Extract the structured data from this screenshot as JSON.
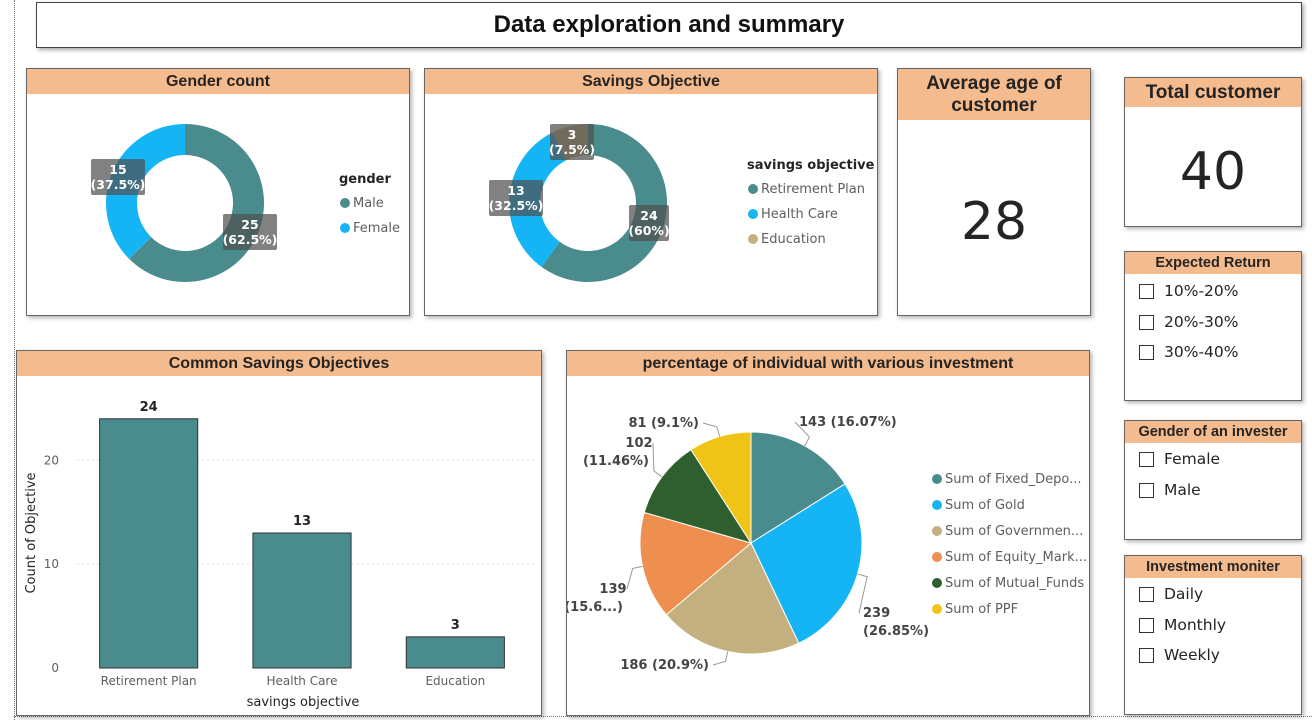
{
  "page_title": "Data exploration and summary",
  "gender_count": {
    "title": "Gender count",
    "legend_title": "gender",
    "chart_data": {
      "type": "pie",
      "title": "Gender count",
      "categories": [
        "Male",
        "Female"
      ],
      "values": [
        25,
        15
      ],
      "percent_labels": [
        "(62.5%)",
        "(37.5%)"
      ],
      "colors": [
        "#4a8b8e",
        "#15b4f4"
      ],
      "donut": true,
      "legend_placement": "right"
    }
  },
  "savings_objective": {
    "title": "Savings Objective",
    "legend_title": "savings objective",
    "chart_data": {
      "type": "pie",
      "title": "Savings Objective",
      "categories": [
        "Retirement Plan",
        "Health Care",
        "Education"
      ],
      "values": [
        24,
        13,
        3
      ],
      "percent_labels": [
        "(60%)",
        "(32.5%)",
        "(7.5%)"
      ],
      "colors": [
        "#4a8b8e",
        "#15b4f4",
        "#c4b07e"
      ],
      "donut": true,
      "legend_placement": "right"
    }
  },
  "kpi_avg_age": {
    "title": "Average age of customer",
    "value": "28"
  },
  "kpi_total": {
    "title": "Total customer",
    "value": "40"
  },
  "common_savings": {
    "title": "Common Savings Objectives",
    "chart_data": {
      "type": "bar",
      "title": "Common Savings Objectives",
      "categories": [
        "Retirement Plan",
        "Health Care",
        "Education"
      ],
      "values": [
        24,
        13,
        3
      ],
      "xlabel": "savings objective",
      "ylabel": "Count of Objective",
      "ylim": [
        0,
        26
      ],
      "yticks": [
        0,
        10,
        20
      ],
      "grid": true,
      "color": "#4a8b8e"
    }
  },
  "investment_pie": {
    "title": "percentage of individual with various investment",
    "chart_data": {
      "type": "pie",
      "title": "percentage of individual with various investment",
      "categories": [
        "Sum of Fixed_Depo...",
        "Sum of Gold",
        "Sum of Governmen...",
        "Sum of Equity_Mark...",
        "Sum of Mutual_Funds",
        "Sum of PPF"
      ],
      "values": [
        143,
        239,
        186,
        139,
        102,
        81
      ],
      "value_labels": [
        "143 (16.07%)",
        "239",
        "186 (20.9%)",
        "139",
        "102",
        "81 (9.1%)"
      ],
      "percent_labels": [
        "",
        "(26.85%)",
        "",
        "(15.6...)",
        "(11.46%)",
        ""
      ],
      "colors": [
        "#4a8b8e",
        "#15b4f4",
        "#c4b07e",
        "#ef8f4f",
        "#2f5f2f",
        "#efc417"
      ],
      "legend_placement": "right"
    }
  },
  "slicers": {
    "expected_return": {
      "title": "Expected Return",
      "options": [
        "10%-20%",
        "20%-30%",
        "30%-40%"
      ]
    },
    "gender_investor": {
      "title": "Gender of an invester",
      "options": [
        "Female",
        "Male"
      ]
    },
    "investment_monitor": {
      "title": "Investment moniter",
      "options": [
        "Daily",
        "Monthly",
        "Weekly"
      ]
    }
  }
}
